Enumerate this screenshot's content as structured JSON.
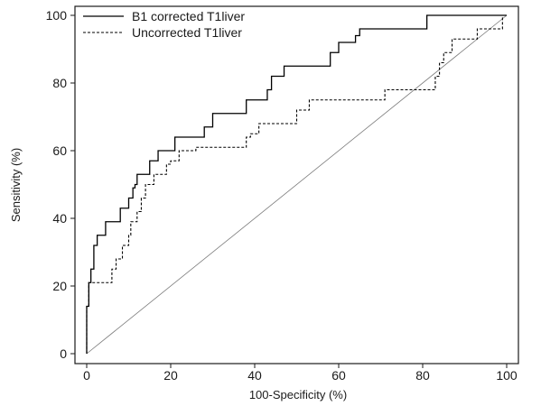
{
  "chart_data": {
    "type": "line",
    "title": "",
    "xlabel": "100-Specificity (%)",
    "ylabel": "Sensitivity (%)",
    "xlim": [
      0,
      100
    ],
    "ylim": [
      0,
      100
    ],
    "xticks": [
      0,
      20,
      40,
      60,
      80,
      100
    ],
    "yticks": [
      0,
      20,
      40,
      60,
      80,
      100
    ],
    "legend_position": "top-left",
    "grid": false,
    "series": [
      {
        "name": "B1 corrected T1liver",
        "style": "solid",
        "color": "#000000",
        "x": [
          0,
          0,
          0.5,
          0.5,
          1,
          1,
          1.7,
          1.7,
          2.5,
          2.5,
          4.5,
          4.5,
          8,
          8,
          10,
          10,
          11,
          11,
          11.5,
          11.5,
          12,
          12,
          15,
          15,
          17,
          17,
          21,
          21,
          28,
          28,
          30,
          30,
          38,
          38,
          43,
          43,
          44,
          44,
          47,
          47,
          58,
          58,
          60,
          60,
          64,
          64,
          65,
          65,
          81,
          81,
          100,
          100
        ],
        "y": [
          0,
          14,
          14,
          21,
          21,
          25,
          25,
          32,
          32,
          35,
          35,
          39,
          39,
          43,
          43,
          46,
          46,
          49,
          49,
          50,
          50,
          53,
          53,
          57,
          57,
          60,
          60,
          64,
          64,
          67,
          67,
          71,
          71,
          75,
          75,
          78,
          78,
          82,
          82,
          85,
          85,
          89,
          89,
          92,
          92,
          94,
          94,
          96,
          96,
          100,
          100,
          100
        ]
      },
      {
        "name": "Uncorrected T1liver",
        "style": "dashed",
        "color": "#000000",
        "x": [
          0,
          0,
          0.5,
          0.5,
          6,
          6,
          7,
          7,
          8.5,
          8.5,
          10,
          10,
          10.5,
          10.5,
          12,
          12,
          13,
          13,
          14,
          14,
          16,
          16,
          19,
          19,
          20,
          20,
          22,
          22,
          26,
          26,
          38,
          38,
          39,
          39,
          41,
          41,
          50,
          50,
          53,
          53,
          57,
          57,
          71,
          71,
          83,
          83,
          84,
          84,
          85,
          85,
          87,
          87,
          88,
          88,
          93,
          93,
          99,
          99,
          100
        ],
        "y": [
          0,
          14,
          14,
          21,
          21,
          25,
          25,
          28,
          28,
          32,
          32,
          35,
          35,
          39,
          39,
          42,
          42,
          46,
          46,
          50,
          50,
          53,
          53,
          56,
          56,
          57,
          57,
          60,
          60,
          61,
          61,
          64,
          64,
          65,
          65,
          68,
          68,
          72,
          72,
          75,
          75,
          75,
          75,
          78,
          78,
          82,
          82,
          86,
          86,
          89,
          89,
          93,
          93,
          93,
          93,
          96,
          96,
          100,
          100
        ]
      },
      {
        "name": "",
        "style": "thin",
        "color": "#7a7a7a",
        "x": [
          0,
          100
        ],
        "y": [
          0,
          100
        ]
      }
    ]
  }
}
